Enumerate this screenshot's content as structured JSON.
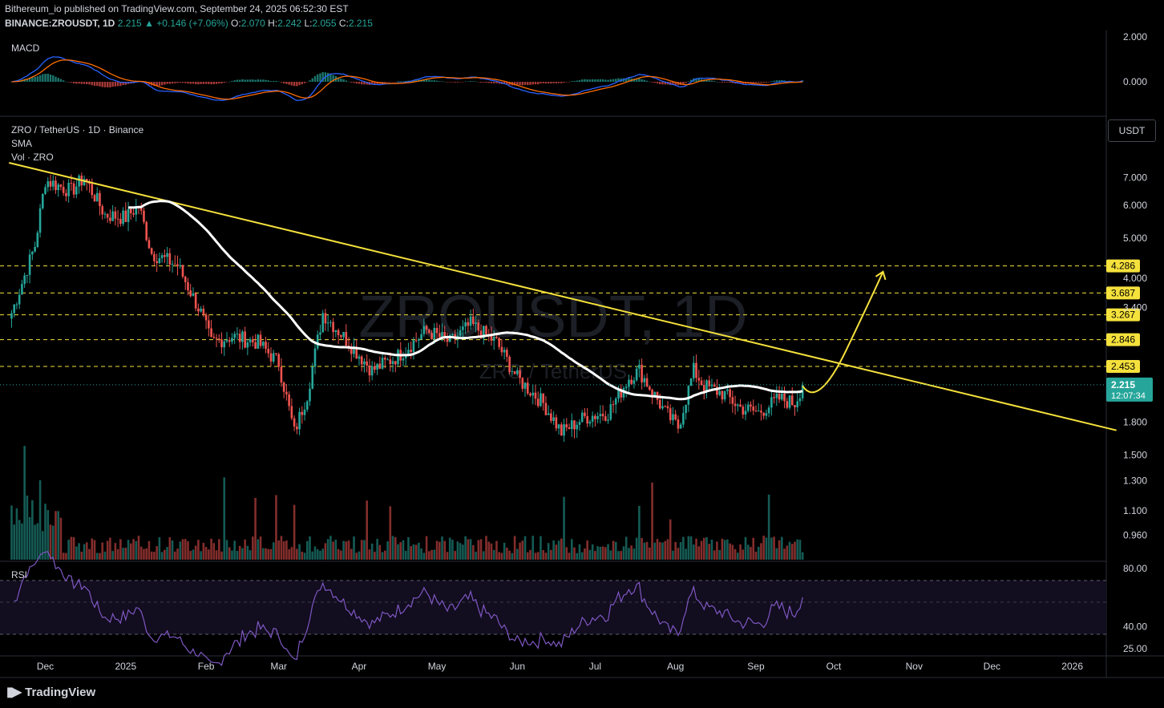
{
  "header": {
    "line1": "Bithereum_io published on TradingView.com, September 24, 2025 06:52:30 EST",
    "symbol": "BINANCE:ZROUSDT, 1D",
    "price": "2.215",
    "change": "+0.146 (+7.06%)",
    "o_label": "O:",
    "o": "2.070",
    "h_label": "H:",
    "h": "2.242",
    "l_label": "L:",
    "l": "2.055",
    "c_label": "C:",
    "c": "2.215"
  },
  "panes": {
    "macd_label": "MACD",
    "pair_label": "ZRO / TetherUS · 1D · Binance",
    "sma_label": "SMA",
    "vol_label": "Vol · ZRO",
    "rsi_label": "RSI",
    "currency_button": "USDT"
  },
  "watermark": {
    "main": "ZROUSDT, 1D",
    "sub": "ZRO / TetherUS"
  },
  "price_tag": {
    "value": "2.215",
    "countdown": "12:07:34"
  },
  "footer": {
    "brand": "TradingView"
  },
  "colors": {
    "bg": "#000000",
    "up": "#26a69a",
    "down": "#ef5350",
    "trend": "#f5e13c",
    "sma": "#ffffff",
    "rsi": "#7e57c2",
    "macd": "#2962ff",
    "signal": "#ff6d00"
  },
  "chart_data": [
    {
      "type": "candlestick",
      "name": "price",
      "y_scale": "log",
      "ylim": [
        0.85,
        9.0
      ],
      "y_ticks": [
        "7.000",
        "6.000",
        "5.000",
        "4.000",
        "3.400",
        "1.800",
        "1.500",
        "1.300",
        "1.100",
        "0.960"
      ],
      "x_ticks": [
        "Dec",
        "2025",
        "Feb",
        "Mar",
        "Apr",
        "May",
        "Jun",
        "Jul",
        "Aug",
        "Sep",
        "Oct",
        "Nov",
        "Dec",
        "2026"
      ],
      "x_range": [
        "2024-11-20",
        "2026-01-15"
      ],
      "horizontal_levels": [
        4.286,
        3.687,
        3.267,
        2.846,
        2.453
      ],
      "level_labels": [
        "4.286",
        "3.687",
        "3.267",
        "2.846",
        "2.453"
      ],
      "trendline": [
        [
          "2024-11-21",
          7.6
        ],
        [
          "2026-01-22",
          1.72
        ]
      ],
      "sma_visible_from": "2025-01-06",
      "projection": [
        [
          "2025-09-23",
          2.2
        ],
        [
          "2025-09-29",
          2.1
        ],
        [
          "2025-10-10",
          2.7
        ],
        [
          "2025-10-24",
          4.15
        ]
      ],
      "keypoints": [
        [
          "2024-11-22",
          3.3
        ],
        [
          "2024-12-01",
          4.8
        ],
        [
          "2024-12-05",
          6.9
        ],
        [
          "2024-12-15",
          6.5
        ],
        [
          "2024-12-20",
          7.0
        ],
        [
          "2024-12-28",
          5.7
        ],
        [
          "2025-01-05",
          5.6
        ],
        [
          "2025-01-10",
          6.0
        ],
        [
          "2025-01-15",
          4.6
        ],
        [
          "2025-01-25",
          4.3
        ],
        [
          "2025-02-03",
          3.3
        ],
        [
          "2025-02-07",
          2.8
        ],
        [
          "2025-02-15",
          2.9
        ],
        [
          "2025-02-25",
          2.8
        ],
        [
          "2025-03-05",
          2.5
        ],
        [
          "2025-03-11",
          1.7
        ],
        [
          "2025-03-16",
          2.1
        ],
        [
          "2025-03-22",
          3.3
        ],
        [
          "2025-04-01",
          2.8
        ],
        [
          "2025-04-10",
          2.4
        ],
        [
          "2025-04-20",
          2.6
        ],
        [
          "2025-05-01",
          3.0
        ],
        [
          "2025-05-10",
          2.8
        ],
        [
          "2025-05-18",
          3.1
        ],
        [
          "2025-05-28",
          2.8
        ],
        [
          "2025-06-05",
          2.3
        ],
        [
          "2025-06-15",
          2.0
        ],
        [
          "2025-06-22",
          1.7
        ],
        [
          "2025-07-01",
          1.85
        ],
        [
          "2025-07-10",
          1.9
        ],
        [
          "2025-07-18",
          2.3
        ],
        [
          "2025-07-22",
          2.4
        ],
        [
          "2025-08-01",
          1.9
        ],
        [
          "2025-08-06",
          1.75
        ],
        [
          "2025-08-12",
          2.4
        ],
        [
          "2025-08-16",
          2.2
        ],
        [
          "2025-08-24",
          2.1
        ],
        [
          "2025-08-30",
          1.95
        ],
        [
          "2025-09-06",
          1.9
        ],
        [
          "2025-09-14",
          2.05
        ],
        [
          "2025-09-20",
          2.0
        ],
        [
          "2025-09-23",
          2.215
        ]
      ]
    },
    {
      "type": "line",
      "name": "MACD",
      "ylim": [
        -0.7,
        2.3
      ],
      "y_ticks": [
        "2.000",
        "0.000"
      ]
    },
    {
      "type": "line",
      "name": "RSI",
      "ylim": [
        20,
        85
      ],
      "y_ticks": [
        "80.00",
        "40.00",
        "25.00"
      ],
      "bands": [
        70,
        30
      ]
    },
    {
      "type": "bar",
      "name": "Volume"
    }
  ]
}
